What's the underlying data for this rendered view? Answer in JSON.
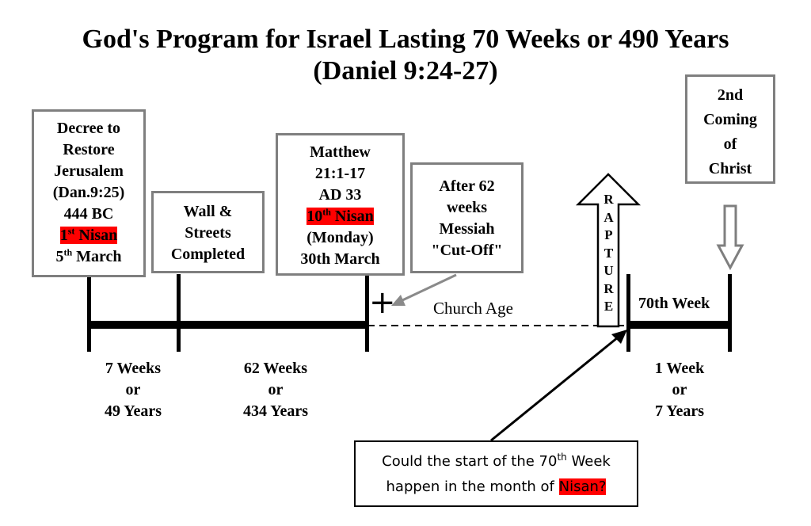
{
  "title": {
    "line1": "God's Program for Israel Lasting 70 Weeks or 490 Years",
    "line2": "(Daniel 9:24-27)"
  },
  "decree_box": {
    "lines": [
      "Decree to",
      "Restore",
      "Jerusalem",
      "(Dan.9:25)",
      "444 BC"
    ],
    "nisan_num": "1",
    "nisan_sup": "st",
    "nisan_word": "Nisan",
    "march_num": "5",
    "march_sup": "th",
    "march_word": "March"
  },
  "wall_box": {
    "lines": [
      "Wall &",
      "Streets",
      "Completed"
    ]
  },
  "matthew_box": {
    "lines": [
      "Matthew",
      "21:1-17",
      "AD 33"
    ],
    "nisan_num": "10",
    "nisan_sup": "th",
    "nisan_word": "Nisan",
    "lines_after": [
      "(Monday)",
      "30th March"
    ]
  },
  "cutoff_box": {
    "lines": [
      "After 62",
      "weeks",
      "Messiah",
      "\"Cut-Off\""
    ]
  },
  "second_coming_box": {
    "lines": [
      "2nd",
      "Coming",
      "of",
      "Christ"
    ]
  },
  "rapture_letters": [
    "R",
    "A",
    "P",
    "T",
    "U",
    "R",
    "E"
  ],
  "church_age": "Church Age",
  "cross": "+",
  "seventieth_week": "70th Week",
  "periods": [
    {
      "lines": [
        "7 Weeks",
        "or",
        "49 Years"
      ]
    },
    {
      "lines": [
        "62 Weeks",
        "or",
        "434 Years"
      ]
    },
    {
      "lines": [
        "1 Week",
        "or",
        "7 Years"
      ]
    }
  ],
  "question": {
    "line1_a": "Could the start of the 70",
    "line1_sup": "th",
    "line1_b": " Week",
    "line2_a": "happen in the month of ",
    "line2_highlight": "Nisan?"
  },
  "colors": {
    "highlight": "#ff0000",
    "box_border": "#7f7f7f",
    "line": "#000000"
  }
}
